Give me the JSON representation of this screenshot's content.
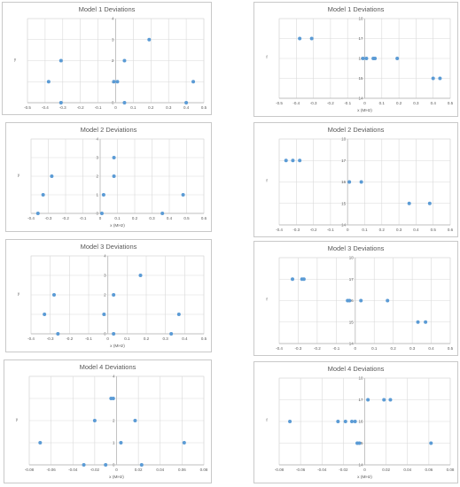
{
  "colors": {
    "point": "#5B9BD5",
    "grid": "#d9d9d9",
    "axis": "#bfbfbf",
    "text": "#595959"
  },
  "chart_data": [
    {
      "type": "scatter",
      "title": "Model 1 Deviations",
      "xlabel": "",
      "ylabel": "y",
      "xlim": [
        -0.5,
        0.5
      ],
      "ylim": [
        0,
        4
      ],
      "grid": true,
      "xticks": [
        "-0.5",
        "-0.4",
        "-0.3",
        "-0.2",
        "-0.1",
        "0",
        "0.1",
        "0.2",
        "0.3",
        "0.4",
        "0.5"
      ],
      "yticks": [
        "0",
        "1",
        "2",
        "3",
        "4"
      ],
      "points": [
        [
          -0.38,
          1
        ],
        [
          -0.31,
          2
        ],
        [
          -0.31,
          0
        ],
        [
          -0.01,
          1
        ],
        [
          0.01,
          1
        ],
        [
          0.05,
          2
        ],
        [
          0.05,
          0
        ],
        [
          0.19,
          3
        ],
        [
          0.4,
          0
        ],
        [
          0.44,
          1
        ]
      ]
    },
    {
      "type": "scatter",
      "title": "Model 1 Deviations",
      "xlabel": "x (MHz)",
      "ylabel": "f",
      "xlim": [
        -0.5,
        0.5
      ],
      "ylim": [
        14,
        18
      ],
      "grid": true,
      "xticks": [
        "-0.5",
        "-0.4",
        "-0.3",
        "-0.2",
        "-0.1",
        "0",
        "0.1",
        "0.2",
        "0.3",
        "0.4",
        "0.5"
      ],
      "yticks": [
        "14",
        "15",
        "16",
        "17",
        "18"
      ],
      "points": [
        [
          -0.38,
          17
        ],
        [
          -0.31,
          17
        ],
        [
          -0.01,
          16
        ],
        [
          0.01,
          16
        ],
        [
          0.05,
          16
        ],
        [
          0.06,
          16
        ],
        [
          0.19,
          16
        ],
        [
          0.4,
          15
        ],
        [
          0.44,
          15
        ]
      ]
    },
    {
      "type": "scatter",
      "title": "Model 2 Deviations",
      "xlabel": "x (MHz)",
      "ylabel": "y",
      "xlim": [
        -0.4,
        0.6
      ],
      "ylim": [
        0,
        4
      ],
      "grid": true,
      "xticks": [
        "-0.4",
        "-0.3",
        "-0.2",
        "-0.1",
        "0",
        "0.1",
        "0.2",
        "0.3",
        "0.4",
        "0.5",
        "0.6"
      ],
      "yticks": [
        "0",
        "1",
        "2",
        "3",
        "4"
      ],
      "points": [
        [
          -0.36,
          0
        ],
        [
          -0.33,
          1
        ],
        [
          -0.28,
          2
        ],
        [
          0.01,
          0
        ],
        [
          0.02,
          1
        ],
        [
          0.08,
          2
        ],
        [
          0.08,
          3
        ],
        [
          0.36,
          0
        ],
        [
          0.48,
          1
        ]
      ]
    },
    {
      "type": "scatter",
      "title": "Model 2 Deviations",
      "xlabel": "",
      "ylabel": "f",
      "xlim": [
        -0.4,
        0.6
      ],
      "ylim": [
        14,
        18
      ],
      "grid": true,
      "xticks": [
        "-0.4",
        "-0.3",
        "-0.2",
        "-0.1",
        "0",
        "0.1",
        "0.2",
        "0.3",
        "0.4",
        "0.5",
        "0.6"
      ],
      "yticks": [
        "14",
        "15",
        "16",
        "17",
        "18"
      ],
      "points": [
        [
          -0.36,
          17
        ],
        [
          -0.32,
          17
        ],
        [
          -0.28,
          17
        ],
        [
          0.01,
          16
        ],
        [
          0.08,
          16
        ],
        [
          0.36,
          15
        ],
        [
          0.48,
          15
        ]
      ]
    },
    {
      "type": "scatter",
      "title": "Model 3 Deviations",
      "xlabel": "x (MHz)",
      "ylabel": "y",
      "xlim": [
        -0.4,
        0.5
      ],
      "ylim": [
        0,
        4
      ],
      "grid": true,
      "xticks": [
        "-0.4",
        "-0.3",
        "-0.2",
        "-0.1",
        "0",
        "0.1",
        "0.2",
        "0.3",
        "0.4",
        "0.5"
      ],
      "yticks": [
        "0",
        "1",
        "2",
        "3",
        "4"
      ],
      "points": [
        [
          -0.33,
          1
        ],
        [
          -0.28,
          2
        ],
        [
          -0.26,
          0
        ],
        [
          -0.02,
          1
        ],
        [
          0.03,
          2
        ],
        [
          0.03,
          0
        ],
        [
          0.17,
          3
        ],
        [
          0.33,
          0
        ],
        [
          0.37,
          1
        ]
      ]
    },
    {
      "type": "scatter",
      "title": "Model 3 Deviations",
      "xlabel": "",
      "ylabel": "f",
      "xlim": [
        -0.4,
        0.5
      ],
      "ylim": [
        14,
        18
      ],
      "grid": true,
      "xticks": [
        "-0.4",
        "-0.3",
        "-0.2",
        "-0.1",
        "0",
        "0.1",
        "0.2",
        "0.3",
        "0.4",
        "0.5"
      ],
      "yticks": [
        "14",
        "15",
        "16",
        "17",
        "18"
      ],
      "points": [
        [
          -0.33,
          17
        ],
        [
          -0.28,
          17
        ],
        [
          -0.27,
          17
        ],
        [
          -0.04,
          16
        ],
        [
          -0.03,
          16
        ],
        [
          0.03,
          16
        ],
        [
          0.17,
          16
        ],
        [
          0.33,
          15
        ],
        [
          0.37,
          15
        ]
      ]
    },
    {
      "type": "scatter",
      "title": "Model 4 Deviations",
      "xlabel": "x (MHz)",
      "ylabel": "y",
      "xlim": [
        -0.08,
        0.08
      ],
      "ylim": [
        0,
        4
      ],
      "grid": true,
      "xticks": [
        "-0.08",
        "-0.06",
        "-0.04",
        "-0.02",
        "0",
        "0.02",
        "0.04",
        "0.06",
        "0.08"
      ],
      "yticks": [
        "0",
        "1",
        "2",
        "3",
        "4"
      ],
      "points": [
        [
          -0.07,
          1
        ],
        [
          -0.03,
          0
        ],
        [
          -0.01,
          0
        ],
        [
          -0.02,
          2
        ],
        [
          -0.005,
          3
        ],
        [
          -0.003,
          3
        ],
        [
          0.004,
          1
        ],
        [
          0.017,
          2
        ],
        [
          0.023,
          0
        ],
        [
          0.062,
          1
        ]
      ]
    },
    {
      "type": "scatter",
      "title": "Model 4 Deviations",
      "xlabel": "x (MHz)",
      "ylabel": "f",
      "xlim": [
        -0.08,
        0.08
      ],
      "ylim": [
        14,
        18
      ],
      "grid": true,
      "xticks": [
        "-0.08",
        "-0.06",
        "-0.04",
        "-0.02",
        "0",
        "0.02",
        "0.04",
        "0.06",
        "0.08"
      ],
      "yticks": [
        "14",
        "15",
        "16",
        "17",
        "18"
      ],
      "points": [
        [
          -0.07,
          16
        ],
        [
          -0.025,
          16
        ],
        [
          -0.018,
          16
        ],
        [
          -0.012,
          16
        ],
        [
          -0.009,
          16
        ],
        [
          -0.007,
          15
        ],
        [
          -0.005,
          15
        ],
        [
          0.003,
          17
        ],
        [
          0.018,
          17
        ],
        [
          0.024,
          17
        ],
        [
          0.062,
          15
        ]
      ]
    }
  ]
}
